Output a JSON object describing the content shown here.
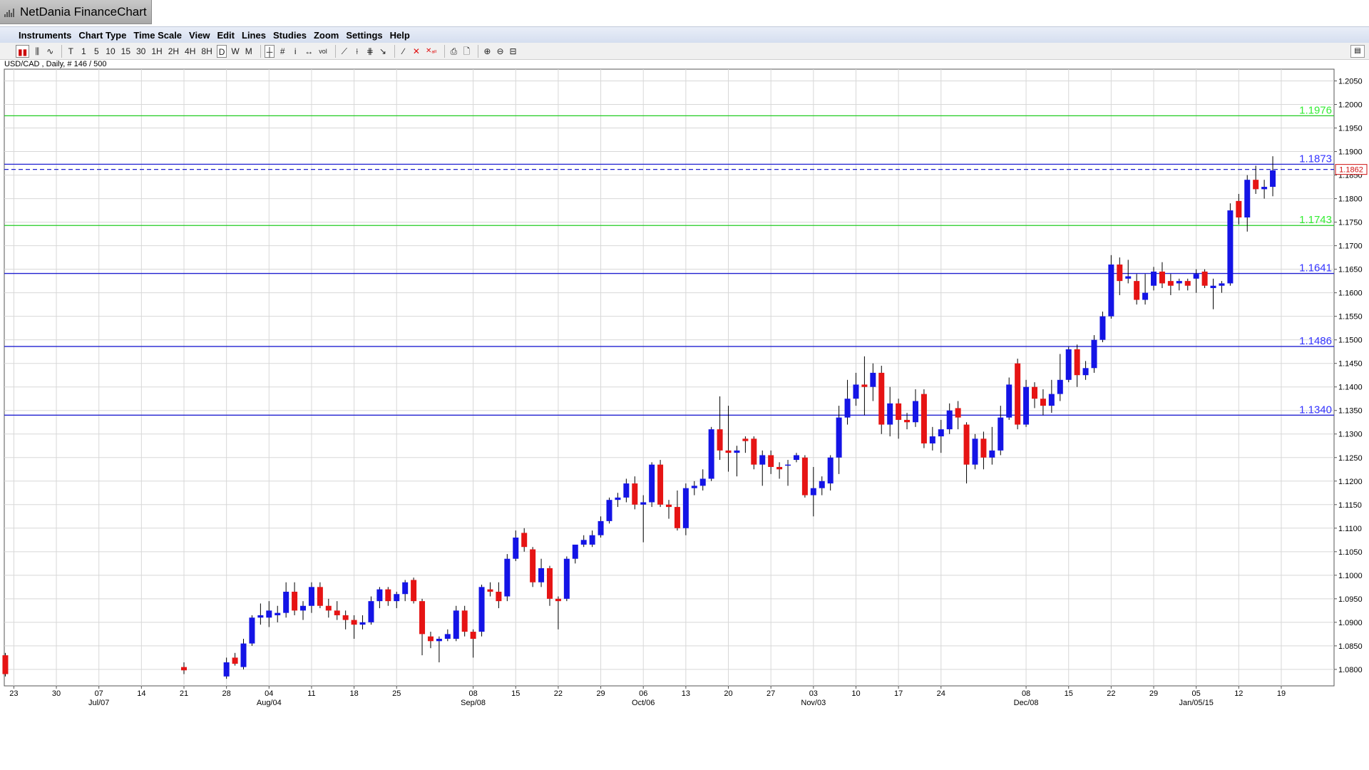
{
  "window": {
    "title": "NetDania FinanceChart"
  },
  "menu": [
    "Instruments",
    "Chart Type",
    "Time Scale",
    "View",
    "Edit",
    "Lines",
    "Studies",
    "Zoom",
    "Settings",
    "Help"
  ],
  "toolbar": {
    "timeframes": [
      "T",
      "1",
      "5",
      "10",
      "15",
      "30",
      "1H",
      "2H",
      "4H",
      "8H",
      "D",
      "W",
      "M"
    ],
    "active_timeframe": "D"
  },
  "chart_info": "USD/CAD , Daily, # 146 / 500",
  "chart_data": {
    "type": "candlestick",
    "symbol": "USD/CAD",
    "interval": "Daily",
    "ylim": [
      1.0765,
      1.2075
    ],
    "y_ticks": [
      "1.2050",
      "1.2000",
      "1.1950",
      "1.1900",
      "1.1850",
      "1.1800",
      "1.1750",
      "1.1700",
      "1.1650",
      "1.1600",
      "1.1550",
      "1.1500",
      "1.1450",
      "1.1400",
      "1.1350",
      "1.1300",
      "1.1250",
      "1.1200",
      "1.1150",
      "1.1100",
      "1.1050",
      "1.1000",
      "1.0950",
      "1.0900",
      "1.0850",
      "1.0800"
    ],
    "current_price": "1.1862",
    "x_day_labels": [
      {
        "d": "23",
        "i": -20
      },
      {
        "d": "30",
        "i": -15
      },
      {
        "d": "07",
        "i": -10
      },
      {
        "d": "14",
        "i": -5
      },
      {
        "d": "21",
        "i": 0
      },
      {
        "d": "28",
        "i": 5
      },
      {
        "d": "04",
        "i": 10
      },
      {
        "d": "11",
        "i": 15
      },
      {
        "d": "18",
        "i": 20
      },
      {
        "d": "25",
        "i": 25
      },
      {
        "d": "08",
        "i": 34
      },
      {
        "d": "15",
        "i": 39
      },
      {
        "d": "22",
        "i": 44
      },
      {
        "d": "29",
        "i": 49
      },
      {
        "d": "06",
        "i": 54
      },
      {
        "d": "13",
        "i": 59
      },
      {
        "d": "20",
        "i": 64
      },
      {
        "d": "27",
        "i": 69
      },
      {
        "d": "03",
        "i": 74
      },
      {
        "d": "10",
        "i": 79
      },
      {
        "d": "17",
        "i": 84
      },
      {
        "d": "24",
        "i": 89
      },
      {
        "d": "08",
        "i": 99
      },
      {
        "d": "15",
        "i": 104
      },
      {
        "d": "22",
        "i": 109
      },
      {
        "d": "29",
        "i": 114
      },
      {
        "d": "05",
        "i": 119
      },
      {
        "d": "12",
        "i": 124
      },
      {
        "d": "19",
        "i": 129
      }
    ],
    "x_month_labels": [
      {
        "label": "Jul/07",
        "i": -10
      },
      {
        "label": "Aug/04",
        "i": 10
      },
      {
        "label": "Sep/08",
        "i": 34
      },
      {
        "label": "Oct/06",
        "i": 54
      },
      {
        "label": "Nov/03",
        "i": 74
      },
      {
        "label": "Dec/08",
        "i": 99
      },
      {
        "label": "Jan/05/15",
        "i": 119
      }
    ],
    "hlines": [
      {
        "value": 1.1976,
        "label": "1.1976",
        "color": "#22cc22",
        "label_color": "#33ee33"
      },
      {
        "value": 1.1873,
        "label": "1.1873",
        "color": "#2020d0",
        "label_color": "#3333ff"
      },
      {
        "value": 1.1743,
        "label": "1.1743",
        "color": "#22cc22",
        "label_color": "#33ee33"
      },
      {
        "value": 1.1641,
        "label": "1.1641",
        "color": "#2020d0",
        "label_color": "#3333ff"
      },
      {
        "value": 1.1486,
        "label": "1.1486",
        "color": "#2020d0",
        "label_color": "#3333ff"
      },
      {
        "value": 1.134,
        "label": "1.1340",
        "color": "#2020d0",
        "label_color": "#3333ff"
      }
    ],
    "dashed_line": {
      "value": 1.1862,
      "color": "#2020d0"
    },
    "colors": {
      "up": "#1414e6",
      "down": "#e61414",
      "grid": "#d8d8d8",
      "price_tag": "#d01010"
    },
    "candles": [
      [
        -21,
        1.083,
        1.0835,
        1.0785,
        1.079
      ],
      [
        0,
        1.0805,
        1.0815,
        1.079,
        1.0798
      ],
      [
        5,
        1.0785,
        1.0825,
        1.078,
        1.0815
      ],
      [
        6,
        1.0825,
        1.0835,
        1.0808,
        1.0812
      ],
      [
        7,
        1.0805,
        1.0865,
        1.08,
        1.0855
      ],
      [
        8,
        1.0855,
        1.0915,
        1.085,
        1.091
      ],
      [
        9,
        1.091,
        1.094,
        1.0895,
        1.0915
      ],
      [
        10,
        1.091,
        1.0945,
        1.089,
        1.0925
      ],
      [
        11,
        1.0915,
        1.0935,
        1.09,
        1.092
      ],
      [
        12,
        1.092,
        1.0985,
        1.091,
        1.0965
      ],
      [
        13,
        1.0965,
        1.0985,
        1.0915,
        1.0925
      ],
      [
        14,
        1.0925,
        1.0945,
        1.0905,
        1.0935
      ],
      [
        15,
        1.0935,
        1.0985,
        1.092,
        1.0975
      ],
      [
        16,
        1.0975,
        1.0985,
        1.093,
        1.0935
      ],
      [
        17,
        1.0935,
        1.095,
        1.091,
        1.0925
      ],
      [
        18,
        1.0925,
        1.0945,
        1.0905,
        1.0915
      ],
      [
        19,
        1.0915,
        1.0925,
        1.0885,
        1.0905
      ],
      [
        20,
        1.0905,
        1.0915,
        1.0865,
        1.0895
      ],
      [
        21,
        1.0895,
        1.0915,
        1.0885,
        1.09
      ],
      [
        22,
        1.09,
        1.0955,
        1.0895,
        1.0945
      ],
      [
        23,
        1.0945,
        1.0975,
        1.093,
        1.097
      ],
      [
        24,
        1.097,
        1.0975,
        1.0935,
        1.0945
      ],
      [
        25,
        1.0945,
        1.0965,
        1.093,
        1.096
      ],
      [
        26,
        1.096,
        1.099,
        1.0945,
        1.0985
      ],
      [
        27,
        1.099,
        1.0995,
        1.094,
        1.0945
      ],
      [
        28,
        1.0945,
        1.095,
        1.083,
        1.0875
      ],
      [
        29,
        1.087,
        1.088,
        1.0845,
        1.086
      ],
      [
        30,
        1.086,
        1.087,
        1.0815,
        1.0865
      ],
      [
        31,
        1.0865,
        1.0885,
        1.086,
        1.0875
      ],
      [
        32,
        1.0865,
        1.0935,
        1.086,
        1.0925
      ],
      [
        33,
        1.0925,
        1.0935,
        1.087,
        1.088
      ],
      [
        34,
        1.088,
        1.0885,
        1.0825,
        1.0865
      ],
      [
        35,
        1.088,
        1.098,
        1.087,
        1.0975
      ],
      [
        36,
        1.097,
        1.0985,
        1.0955,
        1.0965
      ],
      [
        37,
        1.0965,
        1.0985,
        1.093,
        1.0945
      ],
      [
        38,
        1.0955,
        1.1045,
        1.0945,
        1.1035
      ],
      [
        39,
        1.1035,
        1.1095,
        1.103,
        1.108
      ],
      [
        40,
        1.109,
        1.11,
        1.105,
        1.106
      ],
      [
        41,
        1.1055,
        1.106,
        1.0975,
        1.0985
      ],
      [
        42,
        1.0985,
        1.1035,
        1.0975,
        1.1015
      ],
      [
        43,
        1.1015,
        1.102,
        1.0935,
        1.095
      ],
      [
        44,
        1.095,
        1.0955,
        1.0885,
        1.0945
      ],
      [
        45,
        1.095,
        1.104,
        1.0945,
        1.1035
      ],
      [
        46,
        1.1035,
        1.106,
        1.1025,
        1.1065
      ],
      [
        47,
        1.1065,
        1.1085,
        1.106,
        1.1075
      ],
      [
        48,
        1.1065,
        1.1095,
        1.106,
        1.1085
      ],
      [
        49,
        1.1085,
        1.1125,
        1.108,
        1.1115
      ],
      [
        50,
        1.1115,
        1.1165,
        1.111,
        1.116
      ],
      [
        51,
        1.116,
        1.1175,
        1.1145,
        1.1165
      ],
      [
        52,
        1.1165,
        1.1205,
        1.1155,
        1.1195
      ],
      [
        53,
        1.1195,
        1.121,
        1.114,
        1.115
      ],
      [
        54,
        1.115,
        1.117,
        1.107,
        1.1155
      ],
      [
        55,
        1.1155,
        1.124,
        1.1145,
        1.1235
      ],
      [
        56,
        1.1235,
        1.1245,
        1.1145,
        1.115
      ],
      [
        57,
        1.115,
        1.116,
        1.112,
        1.1145
      ],
      [
        58,
        1.1145,
        1.118,
        1.1095,
        1.11
      ],
      [
        59,
        1.11,
        1.1195,
        1.1085,
        1.1185
      ],
      [
        60,
        1.1185,
        1.12,
        1.117,
        1.119
      ],
      [
        61,
        1.119,
        1.1225,
        1.118,
        1.1205
      ],
      [
        62,
        1.1205,
        1.1315,
        1.12,
        1.131
      ],
      [
        63,
        1.131,
        1.138,
        1.1245,
        1.1265
      ],
      [
        64,
        1.1265,
        1.136,
        1.122,
        1.126
      ],
      [
        65,
        1.126,
        1.1275,
        1.121,
        1.1265
      ],
      [
        66,
        1.129,
        1.1295,
        1.126,
        1.1285
      ],
      [
        67,
        1.129,
        1.1295,
        1.1225,
        1.1235
      ],
      [
        68,
        1.1235,
        1.1265,
        1.119,
        1.1255
      ],
      [
        69,
        1.1255,
        1.1265,
        1.1215,
        1.123
      ],
      [
        70,
        1.123,
        1.124,
        1.1205,
        1.1225
      ],
      [
        71,
        1.1235,
        1.1245,
        1.119,
        1.1235
      ],
      [
        72,
        1.1245,
        1.126,
        1.124,
        1.1255
      ],
      [
        73,
        1.125,
        1.1255,
        1.1165,
        1.117
      ],
      [
        74,
        1.117,
        1.123,
        1.1125,
        1.1185
      ],
      [
        75,
        1.1185,
        1.121,
        1.117,
        1.12
      ],
      [
        76,
        1.1195,
        1.1255,
        1.118,
        1.125
      ],
      [
        77,
        1.125,
        1.136,
        1.1215,
        1.1335
      ],
      [
        78,
        1.1335,
        1.1415,
        1.132,
        1.1375
      ],
      [
        79,
        1.1375,
        1.143,
        1.136,
        1.1405
      ],
      [
        80,
        1.1405,
        1.1465,
        1.134,
        1.14
      ],
      [
        81,
        1.14,
        1.145,
        1.137,
        1.143
      ],
      [
        82,
        1.143,
        1.1445,
        1.13,
        1.132
      ],
      [
        83,
        1.132,
        1.14,
        1.1295,
        1.1365
      ],
      [
        84,
        1.1365,
        1.1375,
        1.129,
        1.133
      ],
      [
        85,
        1.133,
        1.1345,
        1.131,
        1.1325
      ],
      [
        86,
        1.1325,
        1.1395,
        1.1315,
        1.137
      ],
      [
        87,
        1.1385,
        1.1395,
        1.127,
        1.128
      ],
      [
        88,
        1.128,
        1.1315,
        1.1265,
        1.1295
      ],
      [
        89,
        1.1295,
        1.133,
        1.126,
        1.131
      ],
      [
        90,
        1.131,
        1.1365,
        1.13,
        1.135
      ],
      [
        91,
        1.1355,
        1.137,
        1.131,
        1.1335
      ],
      [
        92,
        1.132,
        1.1325,
        1.1195,
        1.1235
      ],
      [
        93,
        1.1235,
        1.13,
        1.1225,
        1.129
      ],
      [
        94,
        1.129,
        1.1305,
        1.1225,
        1.125
      ],
      [
        95,
        1.125,
        1.1315,
        1.1235,
        1.1265
      ],
      [
        96,
        1.1265,
        1.136,
        1.1255,
        1.1335
      ],
      [
        97,
        1.1335,
        1.142,
        1.133,
        1.1405
      ],
      [
        98,
        1.145,
        1.146,
        1.131,
        1.132
      ],
      [
        99,
        1.132,
        1.1415,
        1.1315,
        1.14
      ],
      [
        100,
        1.14,
        1.141,
        1.1355,
        1.1375
      ],
      [
        101,
        1.1375,
        1.1395,
        1.134,
        1.136
      ],
      [
        102,
        1.136,
        1.1415,
        1.1345,
        1.1385
      ],
      [
        103,
        1.1385,
        1.147,
        1.137,
        1.1415
      ],
      [
        104,
        1.1415,
        1.1485,
        1.141,
        1.148
      ],
      [
        105,
        1.148,
        1.149,
        1.14,
        1.1425
      ],
      [
        106,
        1.1425,
        1.1455,
        1.1415,
        1.144
      ],
      [
        107,
        1.144,
        1.151,
        1.143,
        1.15
      ],
      [
        108,
        1.15,
        1.156,
        1.1495,
        1.155
      ],
      [
        109,
        1.155,
        1.168,
        1.1545,
        1.166
      ],
      [
        110,
        1.166,
        1.1675,
        1.1595,
        1.1625
      ],
      [
        111,
        1.163,
        1.167,
        1.162,
        1.1635
      ],
      [
        112,
        1.1625,
        1.164,
        1.1575,
        1.1585
      ],
      [
        113,
        1.1585,
        1.164,
        1.1575,
        1.16
      ],
      [
        114,
        1.1615,
        1.1655,
        1.1605,
        1.1645
      ],
      [
        115,
        1.1645,
        1.1665,
        1.161,
        1.162
      ],
      [
        116,
        1.1625,
        1.164,
        1.1595,
        1.1615
      ],
      [
        117,
        1.162,
        1.163,
        1.1605,
        1.1625
      ],
      [
        118,
        1.1625,
        1.163,
        1.1605,
        1.1615
      ],
      [
        119,
        1.163,
        1.165,
        1.16,
        1.164
      ],
      [
        120,
        1.1645,
        1.165,
        1.161,
        1.1615
      ],
      [
        121,
        1.161,
        1.163,
        1.1565,
        1.1615
      ],
      [
        122,
        1.1615,
        1.1625,
        1.16,
        1.162
      ],
      [
        123,
        1.162,
        1.179,
        1.1615,
        1.1775
      ],
      [
        124,
        1.1795,
        1.181,
        1.1745,
        1.176
      ],
      [
        125,
        1.176,
        1.185,
        1.173,
        1.184
      ],
      [
        126,
        1.184,
        1.187,
        1.181,
        1.182
      ],
      [
        127,
        1.182,
        1.184,
        1.18,
        1.1825
      ],
      [
        128,
        1.1825,
        1.189,
        1.1805,
        1.186
      ]
    ]
  }
}
